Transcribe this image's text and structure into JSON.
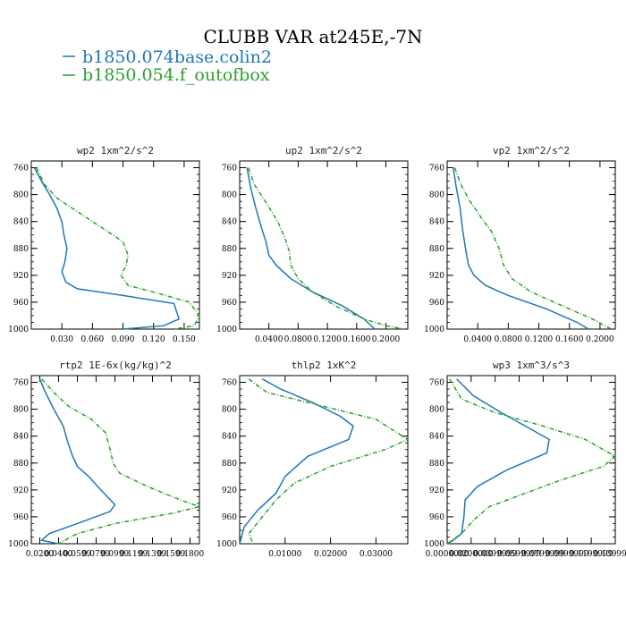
{
  "figure": {
    "title": "CLUBB VAR at245E,-7N",
    "legend": [
      {
        "label": "b1850.074base.colin2",
        "color": "#1f77b4",
        "dash": "solid"
      },
      {
        "label": "b1850.054.f_outofbox",
        "color": "#2ca02c",
        "dash": "dashed"
      }
    ]
  },
  "chart_data": [
    {
      "type": "line",
      "title": "wp2  1xm^2/s^2",
      "xlim": [
        0.0,
        0.165
      ],
      "ylim": [
        1000,
        750
      ],
      "x_ticks": [
        0.03,
        0.06,
        0.09,
        0.12,
        0.15
      ],
      "x_tick_labels": [
        "0.030",
        "0.060",
        "0.090",
        "0.120",
        "0.150"
      ],
      "y_ticks": [
        760,
        800,
        840,
        880,
        920,
        960,
        1000
      ],
      "series": [
        {
          "color": "#1f77b4",
          "dash": "solid",
          "points": [
            [
              0.003,
              760
            ],
            [
              0.01,
              780
            ],
            [
              0.018,
              800
            ],
            [
              0.025,
              820
            ],
            [
              0.03,
              840
            ],
            [
              0.032,
              860
            ],
            [
              0.035,
              880
            ],
            [
              0.033,
              900
            ],
            [
              0.03,
              915
            ],
            [
              0.034,
              930
            ],
            [
              0.045,
              940
            ],
            [
              0.09,
              950
            ],
            [
              0.14,
              962
            ],
            [
              0.145,
              985
            ],
            [
              0.13,
              995
            ],
            [
              0.09,
              1000
            ]
          ]
        },
        {
          "color": "#2ca02c",
          "dash": "dashed",
          "points": [
            [
              0.005,
              760
            ],
            [
              0.013,
              785
            ],
            [
              0.025,
              805
            ],
            [
              0.05,
              830
            ],
            [
              0.075,
              855
            ],
            [
              0.09,
              870
            ],
            [
              0.095,
              890
            ],
            [
              0.093,
              905
            ],
            [
              0.088,
              920
            ],
            [
              0.095,
              935
            ],
            [
              0.12,
              945
            ],
            [
              0.155,
              960
            ],
            [
              0.165,
              980
            ],
            [
              0.16,
              995
            ],
            [
              0.14,
              1000
            ]
          ]
        }
      ]
    },
    {
      "type": "line",
      "title": "up2  1xm^2/s^2",
      "xlim": [
        0.0,
        0.23
      ],
      "ylim": [
        1000,
        750
      ],
      "x_ticks": [
        0.04,
        0.08,
        0.12,
        0.16,
        0.2
      ],
      "x_tick_labels": [
        "0.0400",
        "0.0800",
        "0.1200",
        "0.1600",
        "0.2000"
      ],
      "y_ticks": [
        760,
        800,
        840,
        880,
        920,
        960,
        1000
      ],
      "series": [
        {
          "color": "#1f77b4",
          "dash": "solid",
          "points": [
            [
              0.01,
              760
            ],
            [
              0.015,
              790
            ],
            [
              0.022,
              820
            ],
            [
              0.03,
              850
            ],
            [
              0.036,
              870
            ],
            [
              0.04,
              890
            ],
            [
              0.05,
              905
            ],
            [
              0.07,
              925
            ],
            [
              0.1,
              945
            ],
            [
              0.14,
              965
            ],
            [
              0.17,
              985
            ],
            [
              0.185,
              1000
            ]
          ]
        },
        {
          "color": "#2ca02c",
          "dash": "dashed",
          "points": [
            [
              0.012,
              760
            ],
            [
              0.02,
              785
            ],
            [
              0.035,
              810
            ],
            [
              0.052,
              840
            ],
            [
              0.062,
              865
            ],
            [
              0.068,
              885
            ],
            [
              0.07,
              905
            ],
            [
              0.08,
              925
            ],
            [
              0.1,
              945
            ],
            [
              0.13,
              965
            ],
            [
              0.17,
              985
            ],
            [
              0.2,
              995
            ],
            [
              0.225,
              1000
            ]
          ]
        }
      ]
    },
    {
      "type": "line",
      "title": "vp2  1xm^2/s^2",
      "xlim": [
        0.0,
        0.22
      ],
      "ylim": [
        1000,
        750
      ],
      "x_ticks": [
        0.04,
        0.08,
        0.12,
        0.16,
        0.2
      ],
      "x_tick_labels": [
        "0.0400",
        "0.0800",
        "0.1200",
        "0.1600",
        "0.2000"
      ],
      "y_ticks": [
        760,
        800,
        840,
        880,
        920,
        960,
        1000
      ],
      "series": [
        {
          "color": "#1f77b4",
          "dash": "solid",
          "points": [
            [
              0.008,
              760
            ],
            [
              0.012,
              790
            ],
            [
              0.017,
              820
            ],
            [
              0.02,
              850
            ],
            [
              0.024,
              880
            ],
            [
              0.028,
              905
            ],
            [
              0.035,
              920
            ],
            [
              0.05,
              935
            ],
            [
              0.08,
              950
            ],
            [
              0.13,
              970
            ],
            [
              0.17,
              990
            ],
            [
              0.185,
              1000
            ]
          ]
        },
        {
          "color": "#2ca02c",
          "dash": "dashed",
          "points": [
            [
              0.01,
              760
            ],
            [
              0.018,
              785
            ],
            [
              0.03,
              810
            ],
            [
              0.045,
              835
            ],
            [
              0.058,
              855
            ],
            [
              0.068,
              880
            ],
            [
              0.074,
              905
            ],
            [
              0.085,
              925
            ],
            [
              0.11,
              945
            ],
            [
              0.15,
              965
            ],
            [
              0.19,
              985
            ],
            [
              0.215,
              1000
            ]
          ]
        }
      ]
    },
    {
      "type": "line",
      "title": "rtp2  1E-6x(kg/kg)^2",
      "xlim": [
        0.011,
        0.19
      ],
      "ylim": [
        1000,
        750
      ],
      "x_ticks": [
        0.02,
        0.04,
        0.06,
        0.08,
        0.1,
        0.12,
        0.14,
        0.16,
        0.18
      ],
      "x_tick_labels": [
        "0.0200",
        "0.0400",
        "0.0599",
        "0.0799",
        "0.0999",
        "0.1199",
        "0.1399",
        "0.1599",
        "0.1800"
      ],
      "y_ticks": [
        760,
        800,
        840,
        880,
        920,
        960,
        1000
      ],
      "series": [
        {
          "color": "#1f77b4",
          "dash": "solid",
          "points": [
            [
              0.02,
              755
            ],
            [
              0.026,
              775
            ],
            [
              0.035,
              800
            ],
            [
              0.045,
              825
            ],
            [
              0.05,
              850
            ],
            [
              0.055,
              870
            ],
            [
              0.06,
              885
            ],
            [
              0.072,
              900
            ],
            [
              0.085,
              920
            ],
            [
              0.1,
              942
            ],
            [
              0.095,
              952
            ],
            [
              0.06,
              970
            ],
            [
              0.03,
              985
            ],
            [
              0.022,
              995
            ],
            [
              0.04,
              1000
            ]
          ]
        },
        {
          "color": "#2ca02c",
          "dash": "dashed",
          "points": [
            [
              0.022,
              755
            ],
            [
              0.035,
              775
            ],
            [
              0.05,
              795
            ],
            [
              0.075,
              815
            ],
            [
              0.09,
              835
            ],
            [
              0.095,
              860
            ],
            [
              0.098,
              880
            ],
            [
              0.105,
              895
            ],
            [
              0.135,
              915
            ],
            [
              0.17,
              935
            ],
            [
              0.19,
              945
            ],
            [
              0.16,
              955
            ],
            [
              0.1,
              970
            ],
            [
              0.06,
              985
            ],
            [
              0.04,
              1000
            ]
          ]
        }
      ]
    },
    {
      "type": "line",
      "title": "thlp2  1xK^2",
      "xlim": [
        0.0,
        0.037
      ],
      "ylim": [
        1000,
        750
      ],
      "x_ticks": [
        0.01,
        0.02,
        0.03
      ],
      "x_tick_labels": [
        "0.01000",
        "0.02000",
        "0.03000"
      ],
      "y_ticks": [
        760,
        800,
        840,
        880,
        920,
        960,
        1000
      ],
      "series": [
        {
          "color": "#1f77b4",
          "dash": "solid",
          "points": [
            [
              0.005,
              755
            ],
            [
              0.009,
              770
            ],
            [
              0.016,
              790
            ],
            [
              0.022,
              810
            ],
            [
              0.025,
              825
            ],
            [
              0.024,
              845
            ],
            [
              0.015,
              870
            ],
            [
              0.01,
              900
            ],
            [
              0.008,
              925
            ],
            [
              0.004,
              950
            ],
            [
              0.001,
              975
            ],
            [
              0.0,
              1000
            ]
          ]
        },
        {
          "color": "#2ca02c",
          "dash": "dashed",
          "points": [
            [
              0.002,
              755
            ],
            [
              0.006,
              775
            ],
            [
              0.018,
              795
            ],
            [
              0.03,
              815
            ],
            [
              0.037,
              845
            ],
            [
              0.032,
              860
            ],
            [
              0.02,
              885
            ],
            [
              0.012,
              910
            ],
            [
              0.008,
              935
            ],
            [
              0.005,
              960
            ],
            [
              0.002,
              985
            ],
            [
              0.003,
              1000
            ]
          ]
        }
      ]
    },
    {
      "type": "line",
      "title": "wp3  1xm^3/s^3",
      "xlim": [
        0.0,
        0.14
      ],
      "ylim": [
        1000,
        750
      ],
      "x_ticks": [
        0.0,
        0.02,
        0.04,
        0.06,
        0.08,
        0.1,
        0.12,
        0.14
      ],
      "x_tick_labels": [
        "0.0000000",
        "0.0200000",
        "0.0399999",
        "0.0599999",
        "0.0799999",
        "0.0999999",
        "0.1199999",
        "0.1399999"
      ],
      "y_ticks": [
        760,
        800,
        840,
        880,
        920,
        960,
        1000
      ],
      "series": [
        {
          "color": "#1f77b4",
          "dash": "solid",
          "points": [
            [
              0.008,
              755
            ],
            [
              0.022,
              780
            ],
            [
              0.045,
              805
            ],
            [
              0.065,
              825
            ],
            [
              0.085,
              845
            ],
            [
              0.083,
              865
            ],
            [
              0.05,
              890
            ],
            [
              0.025,
              915
            ],
            [
              0.015,
              935
            ],
            [
              0.014,
              960
            ],
            [
              0.012,
              985
            ],
            [
              0.005,
              995
            ],
            [
              0.0,
              1000
            ]
          ]
        },
        {
          "color": "#2ca02c",
          "dash": "dashed",
          "points": [
            [
              0.002,
              755
            ],
            [
              0.012,
              785
            ],
            [
              0.04,
              805
            ],
            [
              0.08,
              825
            ],
            [
              0.115,
              845
            ],
            [
              0.14,
              870
            ],
            [
              0.13,
              885
            ],
            [
              0.095,
              905
            ],
            [
              0.065,
              925
            ],
            [
              0.035,
              945
            ],
            [
              0.022,
              965
            ],
            [
              0.012,
              985
            ],
            [
              0.004,
              995
            ],
            [
              0.0,
              1000
            ]
          ]
        }
      ]
    }
  ]
}
